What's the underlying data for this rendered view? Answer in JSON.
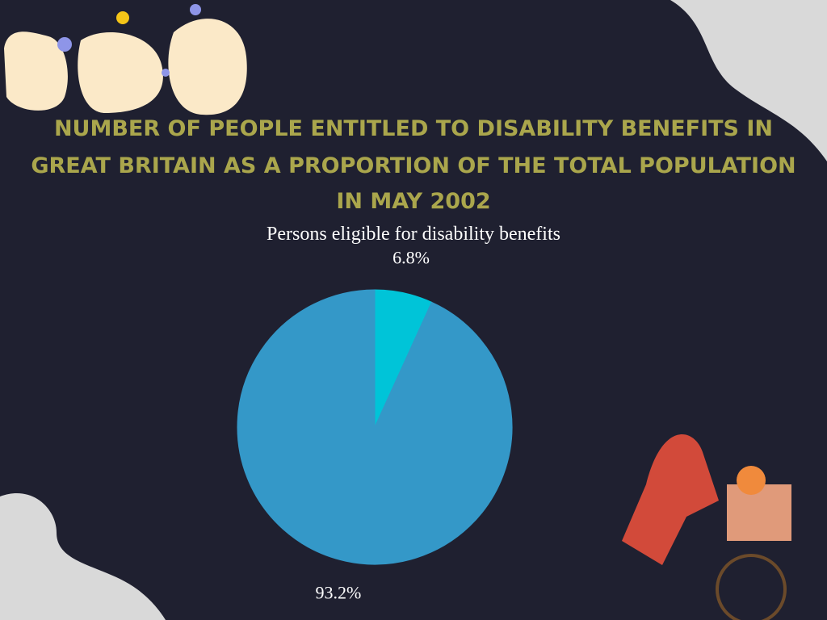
{
  "chart_data": {
    "type": "pie",
    "title": [
      "NUMBER OF PEOPLE ENTITLED TO DISABILITY BENEFITS IN",
      "GREAT BRITAIN AS A PROPORTION OF THE TOTAL POPULATION",
      "IN MAY 2002"
    ],
    "subtitle": "Persons eligible for disability benefits",
    "values": [
      6.8,
      93.2
    ],
    "value_labels": [
      "6.8%",
      "93.2%"
    ],
    "colors": [
      "#00c4d8",
      "#3498c8"
    ]
  }
}
